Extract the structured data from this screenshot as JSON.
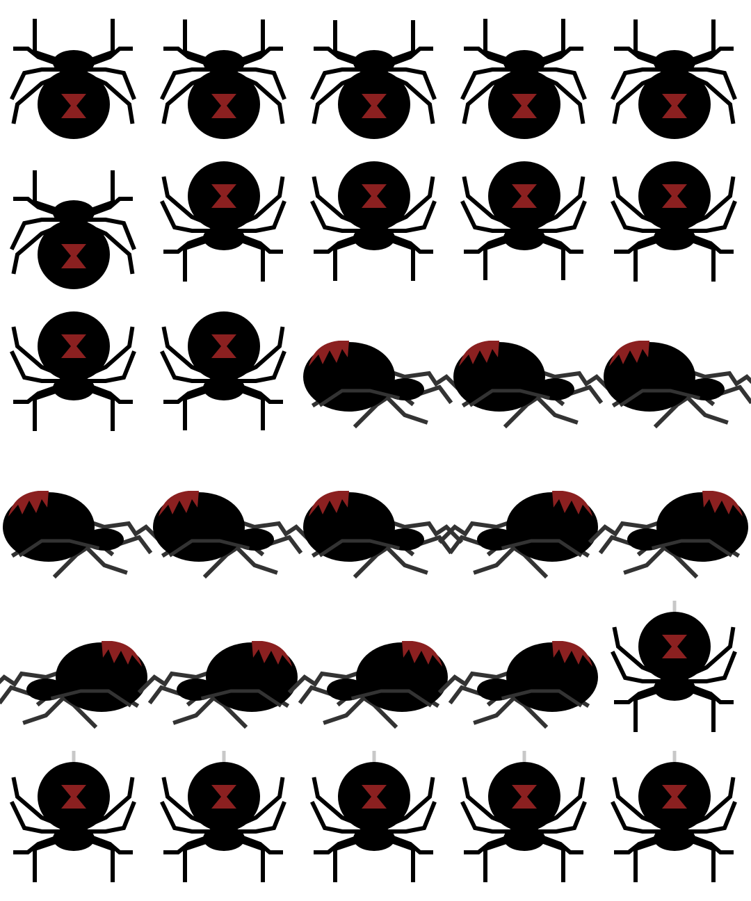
{
  "sprite_sheet": {
    "columns": 5,
    "rows": 6,
    "colors": {
      "background": "#ffffff",
      "body": "#000000",
      "marking": "#8b2020",
      "leg_side": "#333333",
      "thread": "#c8c8c8"
    },
    "frames": [
      {
        "pose": "top-down-head-up"
      },
      {
        "pose": "top-down-head-up"
      },
      {
        "pose": "top-down-head-up"
      },
      {
        "pose": "top-down-head-up"
      },
      {
        "pose": "top-down-head-up"
      },
      {
        "pose": "top-down-head-up"
      },
      {
        "pose": "top-down-head-down"
      },
      {
        "pose": "top-down-head-down"
      },
      {
        "pose": "top-down-head-down"
      },
      {
        "pose": "top-down-head-down"
      },
      {
        "pose": "top-down-head-down"
      },
      {
        "pose": "top-down-head-down"
      },
      {
        "pose": "side-facing-right"
      },
      {
        "pose": "side-facing-right"
      },
      {
        "pose": "side-facing-right"
      },
      {
        "pose": "side-facing-right"
      },
      {
        "pose": "side-facing-right"
      },
      {
        "pose": "side-facing-right"
      },
      {
        "pose": "side-facing-left"
      },
      {
        "pose": "side-facing-left"
      },
      {
        "pose": "side-facing-left"
      },
      {
        "pose": "side-facing-left"
      },
      {
        "pose": "side-facing-left"
      },
      {
        "pose": "side-facing-left"
      },
      {
        "pose": "hanging-on-thread"
      },
      {
        "pose": "hanging-on-thread"
      },
      {
        "pose": "hanging-on-thread"
      },
      {
        "pose": "hanging-on-thread"
      },
      {
        "pose": "hanging-on-thread"
      },
      {
        "pose": "hanging-on-thread"
      }
    ]
  }
}
